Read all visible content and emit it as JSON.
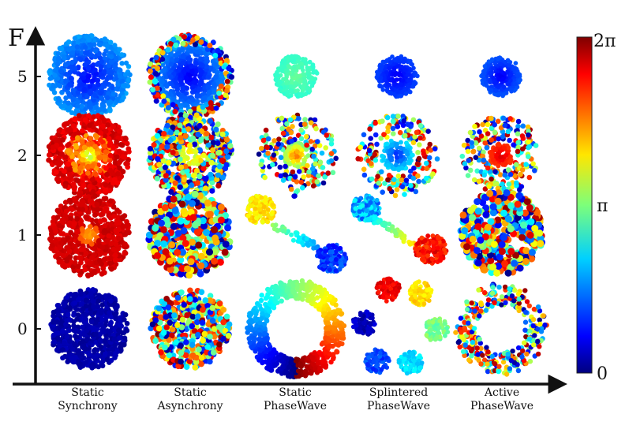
{
  "axis": {
    "y_label": "F",
    "y_ticks": [
      "5",
      "2",
      "1",
      "0"
    ]
  },
  "columns": [
    {
      "line1": "Static",
      "line2": "Synchrony"
    },
    {
      "line1": "Static",
      "line2": "Asynchrony"
    },
    {
      "line1": "Static",
      "line2": "PhaseWave"
    },
    {
      "line1": "Splintered",
      "line2": "PhaseWave"
    },
    {
      "line1": "Active",
      "line2": "PhaseWave"
    }
  ],
  "colorbar": {
    "max_label": "2π",
    "mid_label": "π",
    "min_label": "0",
    "colormap": "jet"
  },
  "panels": [
    {
      "row": "5",
      "column": "Static Synchrony",
      "pattern": "disk-radial-uniform"
    },
    {
      "row": "5",
      "column": "Static Asynchrony",
      "pattern": "disk-radial-with-noisy-rim"
    },
    {
      "row": "5",
      "column": "Static PhaseWave",
      "pattern": "small-disk-green"
    },
    {
      "row": "5",
      "column": "Splintered PhaseWave",
      "pattern": "small-disk-blue"
    },
    {
      "row": "5",
      "column": "Active PhaseWave",
      "pattern": "small-disk-blue"
    },
    {
      "row": "2",
      "column": "Static Synchrony",
      "pattern": "disk-red-rim-yellow-core"
    },
    {
      "row": "2",
      "column": "Static Asynchrony",
      "pattern": "disk-random-with-core"
    },
    {
      "row": "2",
      "column": "Static PhaseWave",
      "pattern": "ring-random-purple-core"
    },
    {
      "row": "2",
      "column": "Splintered PhaseWave",
      "pattern": "ring-random-blue-core"
    },
    {
      "row": "2",
      "column": "Active PhaseWave",
      "pattern": "ring-random-red-core"
    },
    {
      "row": "1",
      "column": "Static Synchrony",
      "pattern": "disk-red-orange-core"
    },
    {
      "row": "1",
      "column": "Static Asynchrony",
      "pattern": "disk-random"
    },
    {
      "row": "1",
      "column": "Static PhaseWave",
      "pattern": "diagonal-blob-chain"
    },
    {
      "row": "1",
      "column": "Splintered PhaseWave",
      "pattern": "diagonal-loop"
    },
    {
      "row": "1",
      "column": "Active PhaseWave",
      "pattern": "disk-random"
    },
    {
      "row": "0",
      "column": "Static Synchrony",
      "pattern": "disk-purple"
    },
    {
      "row": "0",
      "column": "Static Asynchrony",
      "pattern": "disk-random"
    },
    {
      "row": "0",
      "column": "Static PhaseWave",
      "pattern": "ring-phase-gradient"
    },
    {
      "row": "0",
      "column": "Splintered PhaseWave",
      "pattern": "ring-splintered-clusters"
    },
    {
      "row": "0",
      "column": "Active PhaseWave",
      "pattern": "ring-random"
    }
  ]
}
